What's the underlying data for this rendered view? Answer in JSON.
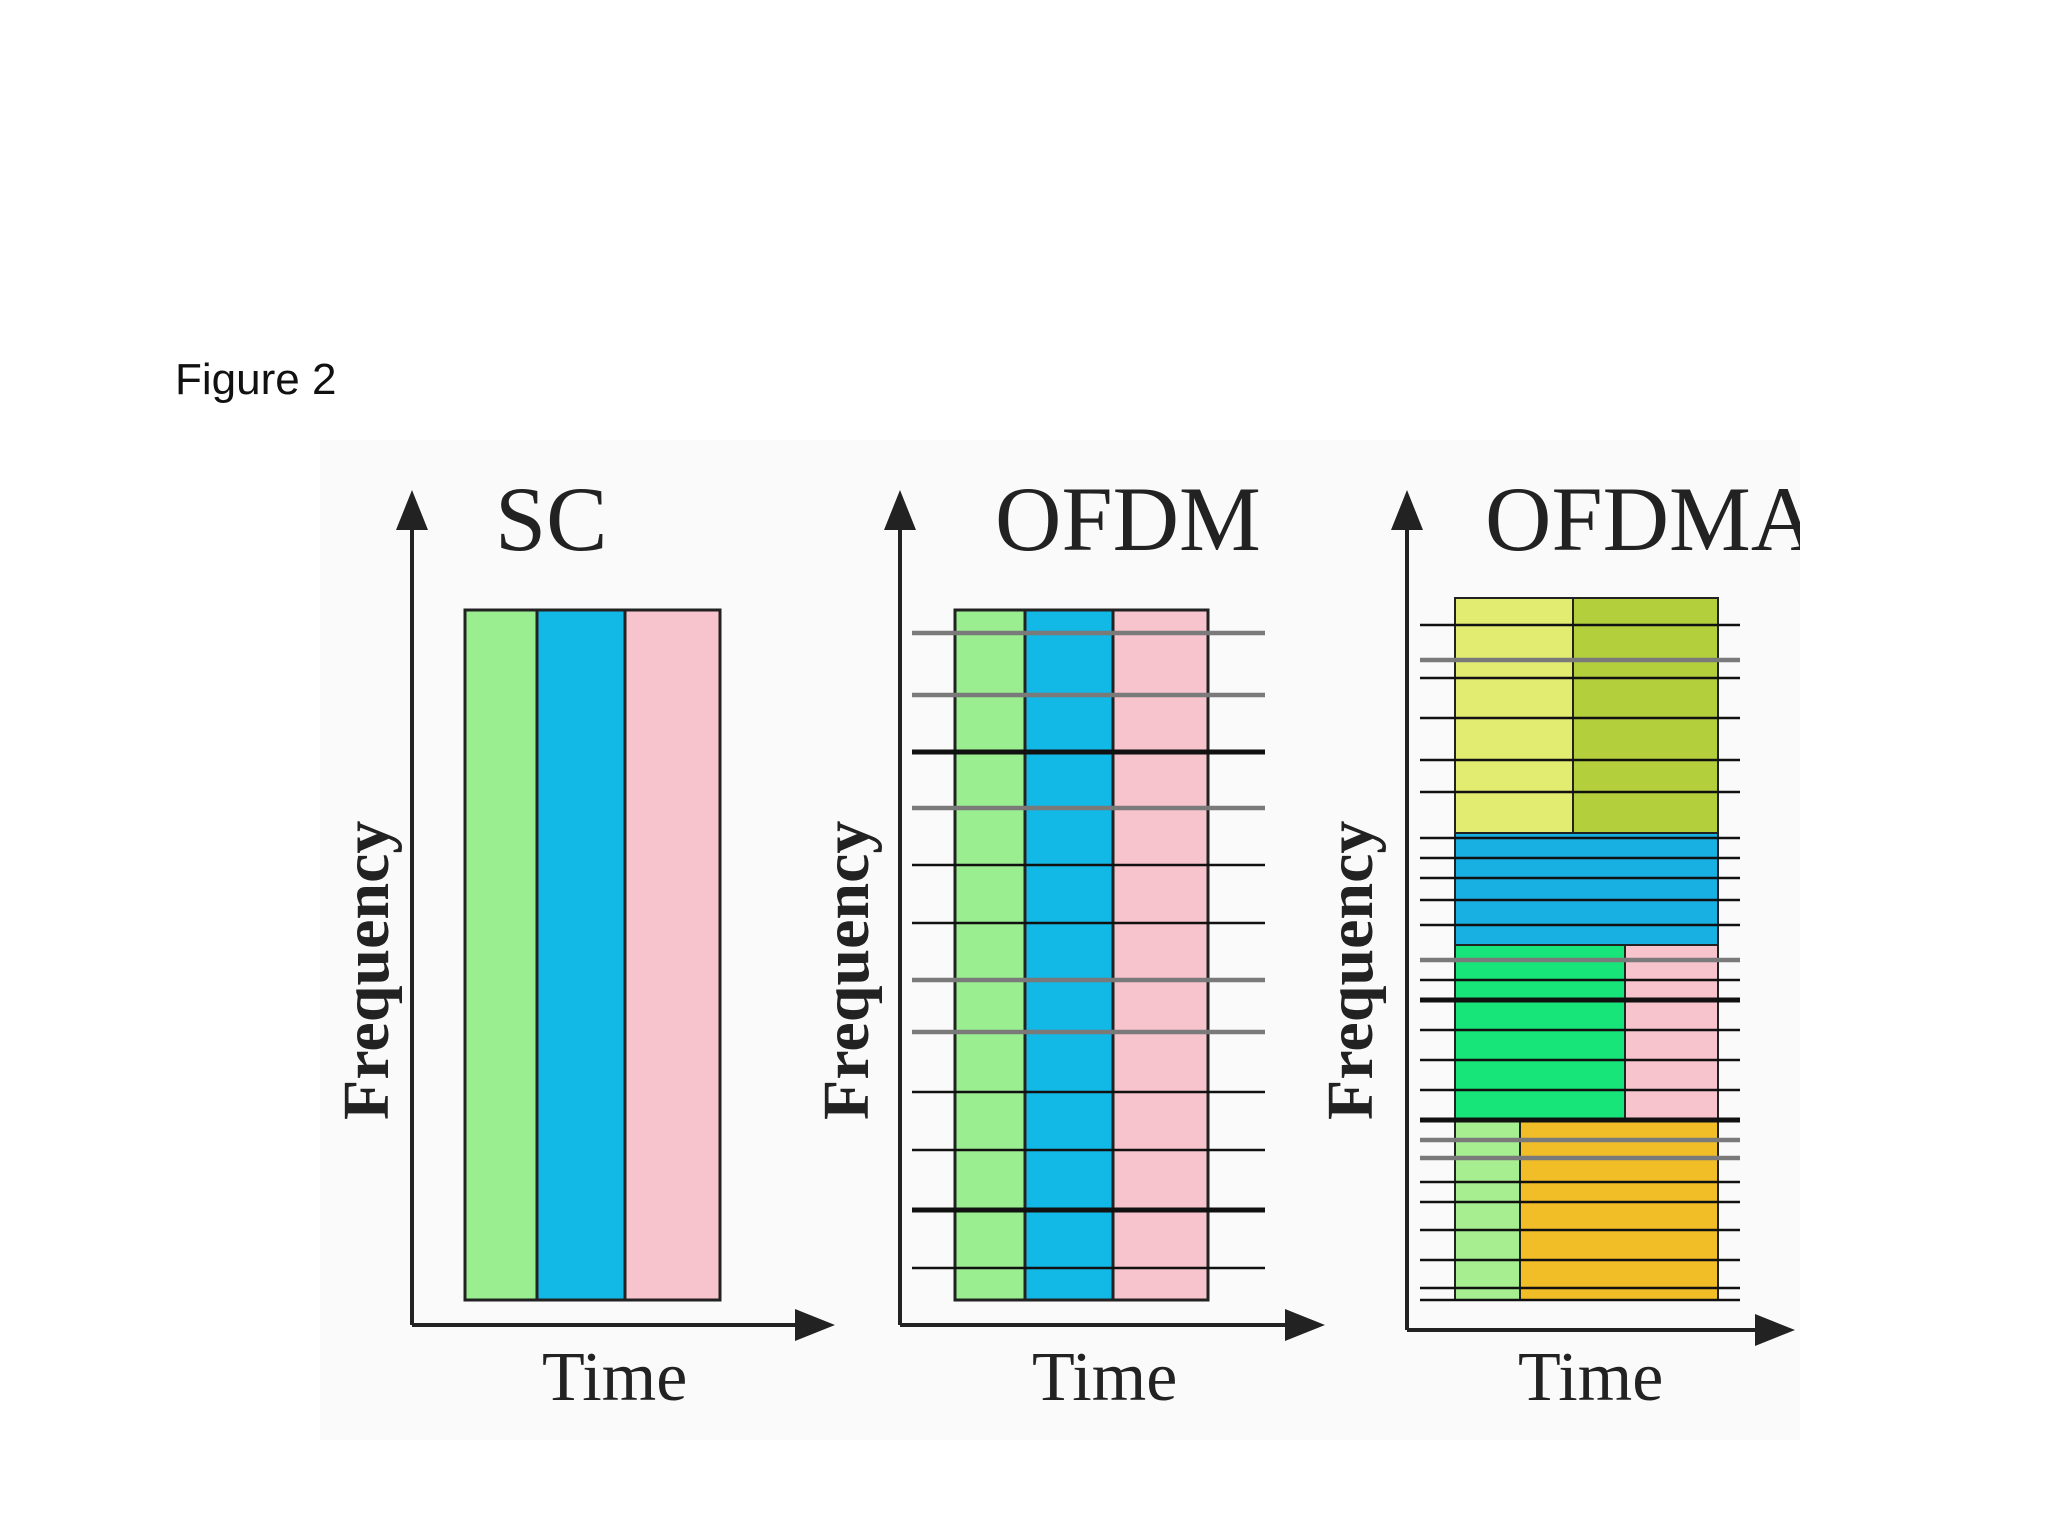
{
  "caption": "Figure 2",
  "diagrams": [
    {
      "title": "SC",
      "xlabel": "Time",
      "ylabel": "Frequency"
    },
    {
      "title": "OFDM",
      "xlabel": "Time",
      "ylabel": "Frequency"
    },
    {
      "title": "OFDMA",
      "xlabel": "Time",
      "ylabel": "Frequency"
    }
  ],
  "colors": {
    "green": "#9aee90",
    "blue": "#12b8e6",
    "pink": "#f7c3cc",
    "yellow": "#e2ec70",
    "olive": "#b3cf3c",
    "cyan": "#18b0e2",
    "bright_green": "#17e579",
    "orange": "#f2be28",
    "light_green": "#a6ee90",
    "axis": "#222222",
    "thick_line": "#111111",
    "grey_line": "#7a7a7a"
  }
}
